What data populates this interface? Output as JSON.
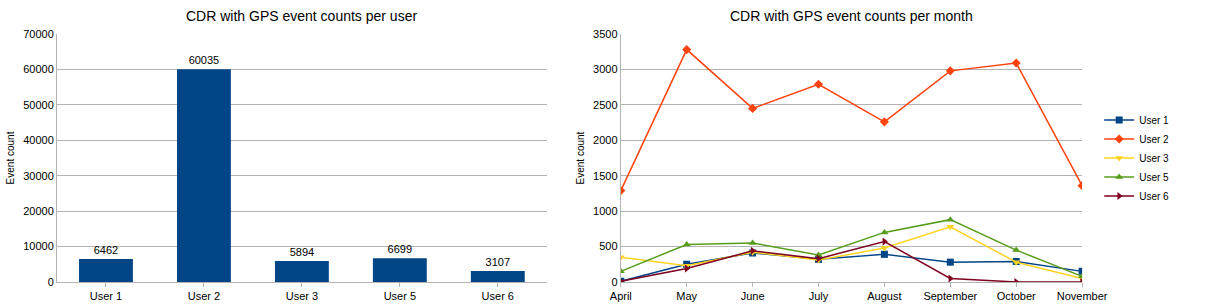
{
  "chart_data": [
    {
      "type": "bar",
      "title": "CDR with GPS event counts per user",
      "categories": [
        "User 1",
        "User 2",
        "User 3",
        "User 5",
        "User 6"
      ],
      "values": [
        6462,
        60035,
        5894,
        6699,
        3107
      ],
      "color": "#004586",
      "y_label": "Event count",
      "ylim": [
        0,
        70000
      ],
      "yticks": [
        0,
        10000,
        20000,
        30000,
        40000,
        50000,
        60000,
        70000
      ],
      "grid": true,
      "data_labels": true
    },
    {
      "type": "line",
      "title": "CDR with GPS event counts per month",
      "categories": [
        "April",
        "May",
        "June",
        "July",
        "August",
        "September",
        "October",
        "November"
      ],
      "series": [
        {
          "name": "User 1",
          "color": "#004586",
          "marker": "square",
          "values": [
            10,
            250,
            410,
            320,
            390,
            280,
            290,
            150
          ]
        },
        {
          "name": "User 2",
          "color": "#ff420e",
          "marker": "diamond",
          "values": [
            1290,
            3280,
            2450,
            2790,
            2260,
            2980,
            3090,
            1360
          ]
        },
        {
          "name": "User 3",
          "color": "#ffd320",
          "marker": "triangle-down",
          "values": [
            350,
            230,
            420,
            310,
            480,
            780,
            280,
            50
          ]
        },
        {
          "name": "User 5",
          "color": "#579d1c",
          "marker": "triangle-up",
          "values": [
            150,
            530,
            550,
            380,
            700,
            880,
            450,
            80
          ]
        },
        {
          "name": "User 6",
          "color": "#7e0021",
          "marker": "triangle-right",
          "values": [
            10,
            190,
            440,
            330,
            570,
            50,
            0,
            0
          ]
        }
      ],
      "y_label": "Event count",
      "ylim": [
        0,
        3500
      ],
      "yticks": [
        0,
        500,
        1000,
        1500,
        2000,
        2500,
        3000,
        3500
      ],
      "grid": true,
      "legend": "right"
    }
  ]
}
